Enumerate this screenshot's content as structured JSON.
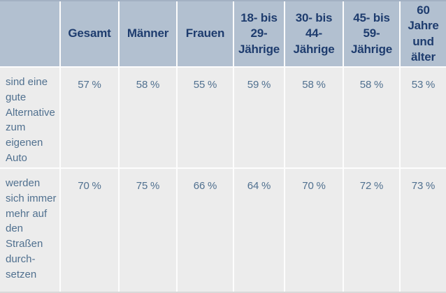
{
  "colors": {
    "header_background": "#b2c0d0",
    "header_text": "#1e3c6e",
    "body_background": "#ececec",
    "body_text": "#50708f",
    "separator": "#fdfdfd",
    "top_edge_line": "#a3b1c3"
  },
  "chart_data": {
    "type": "table",
    "unit": "%",
    "corner_label": "",
    "columns": [
      "Gesamt",
      "Männer",
      "Frauen",
      "18- bis 29-Jährige",
      "30- bis 44-Jährige",
      "45- bis 59-Jährige",
      "60 Jahre und älter"
    ],
    "rows": [
      {
        "label": "sind eine gute Alternative zum eigenen Auto",
        "values": [
          57,
          58,
          55,
          59,
          58,
          58,
          53
        ],
        "display": [
          "57 %",
          "58 %",
          "55 %",
          "59 %",
          "58 %",
          "58 %",
          "53 %"
        ]
      },
      {
        "label": "werden sich immer mehr auf den Straßen durch­setzen",
        "values": [
          70,
          75,
          66,
          64,
          70,
          72,
          73
        ],
        "display": [
          "70 %",
          "75 %",
          "66 %",
          "64 %",
          "70 %",
          "72 %",
          "73 %"
        ]
      }
    ]
  }
}
